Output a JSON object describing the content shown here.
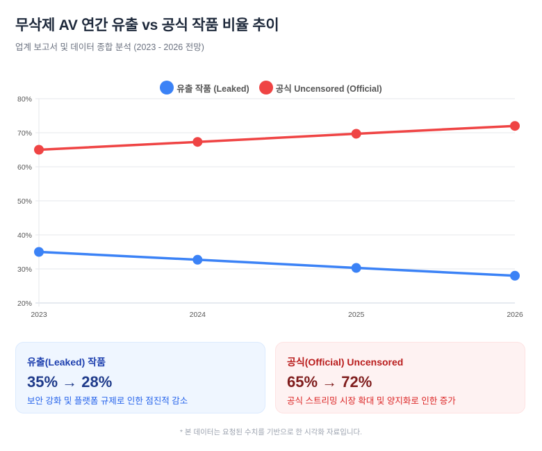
{
  "header": {
    "title": "무삭제 AV 연간 유출 vs 공식 작품 비율 추이",
    "subtitle": "업계 보고서 및 데이터 종합 분석 (2023 - 2026 전망)"
  },
  "legend": [
    {
      "label": "유출 작품 (Leaked)",
      "color": "#3b82f6"
    },
    {
      "label": "공식 Uncensored (Official)",
      "color": "#ef4444"
    }
  ],
  "chart_data": {
    "type": "line",
    "title": "무삭제 AV 연간 유출 vs 공식 작품 비율 추이",
    "x": [
      "2023",
      "2024",
      "2025",
      "2026"
    ],
    "series": [
      {
        "name": "유출 작품 (Leaked)",
        "color": "#3b82f6",
        "values": [
          35,
          32.7,
          30.3,
          28
        ]
      },
      {
        "name": "공식 Uncensored (Official)",
        "color": "#ef4444",
        "values": [
          65,
          67.3,
          69.7,
          72
        ]
      }
    ],
    "xlabel": "",
    "ylabel": "",
    "ylim": [
      20,
      80
    ],
    "yticks": [
      "20%",
      "30%",
      "40%",
      "50%",
      "60%",
      "70%",
      "80%"
    ],
    "grid": true,
    "legend_position": "top"
  },
  "cards": [
    {
      "title": "유출(Leaked) 작품",
      "value": "35% → 28%",
      "description": "보안 강화 및 플랫폼 규제로 인한 점진적 감소"
    },
    {
      "title": "공식(Official) Uncensored",
      "value": "65% → 72%",
      "description": "공식 스트리밍 시장 확대 및 양지화로 인한 증가"
    }
  ],
  "footnote": "* 본 데이터는 요청된 수치를 기반으로 한 시각화 자료입니다."
}
